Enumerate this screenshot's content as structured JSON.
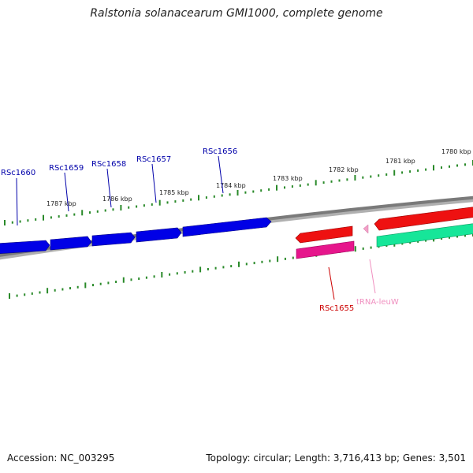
{
  "title": "Ralstonia solanacearum GMI1000, complete genome",
  "accession": "Accession: NC_003295",
  "summary": "Topology: circular; Length: 3,716,413 bp; Genes: 3,501",
  "colors": {
    "forward_cds": "#0000e6",
    "reverse_cds": "#ee1111",
    "reverse_cds_2": "#e6168c",
    "forward_cds_2": "#16e699",
    "trna": "#f2a0c8",
    "backbone": "#808080",
    "ticks": "#2a8a2a"
  },
  "scale_labels": [
    "1787 kbp",
    "1786 kbp",
    "1785 kbp",
    "1784 kbp",
    "1783 kbp",
    "1782 kbp",
    "1781 kbp",
    "1780 kbp"
  ],
  "genes": [
    {
      "name": "RSc1660",
      "color": "#0000aa"
    },
    {
      "name": "RSc1659",
      "color": "#0000aa"
    },
    {
      "name": "RSc1658",
      "color": "#0000aa"
    },
    {
      "name": "RSc1657",
      "color": "#0000aa"
    },
    {
      "name": "RSc1656",
      "color": "#0000aa"
    },
    {
      "name": "RSc1655",
      "color": "#cc0000"
    },
    {
      "name": "tRNA-leuW",
      "color": "#f090c0"
    }
  ]
}
